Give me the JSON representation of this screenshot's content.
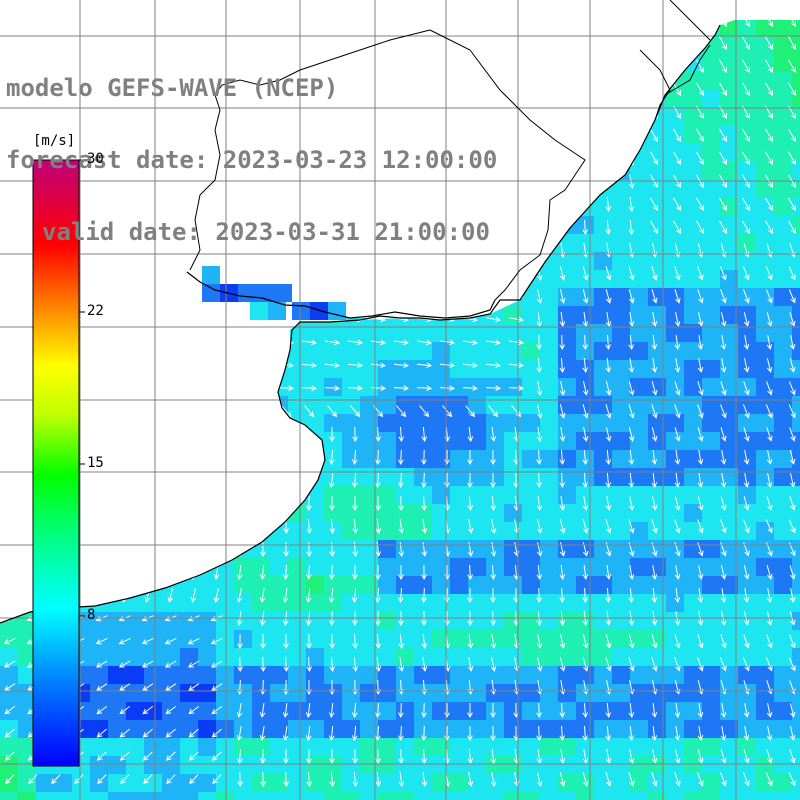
{
  "title": {
    "model": "modelo GEFS-WAVE (NCEP)",
    "forecast": "forecast date: 2023-03-23 12:00:00",
    "valid": "valid date: 2023-03-31 21:00:00"
  },
  "colorbar": {
    "units": "[m/s]",
    "min": 0,
    "max": 30,
    "labels": [
      "30",
      "22",
      "15",
      "8"
    ],
    "colors": [
      "#0000ff",
      "#00aaff",
      "#00ffff",
      "#00ff00",
      "#ffff00",
      "#ff8000",
      "#ff0000",
      "#c0007a"
    ]
  },
  "map": {
    "land_color": "#ffffff",
    "grid_color": "#808080",
    "arrow_color": "#ffffff",
    "field_colors": {
      "deep_blue": "#0a3cf5",
      "blue": "#1e78f5",
      "light_blue": "#1fb4f8",
      "cyan": "#1ee6f0",
      "aqua_green": "#1ef0b4",
      "green": "#1ef078"
    }
  }
}
